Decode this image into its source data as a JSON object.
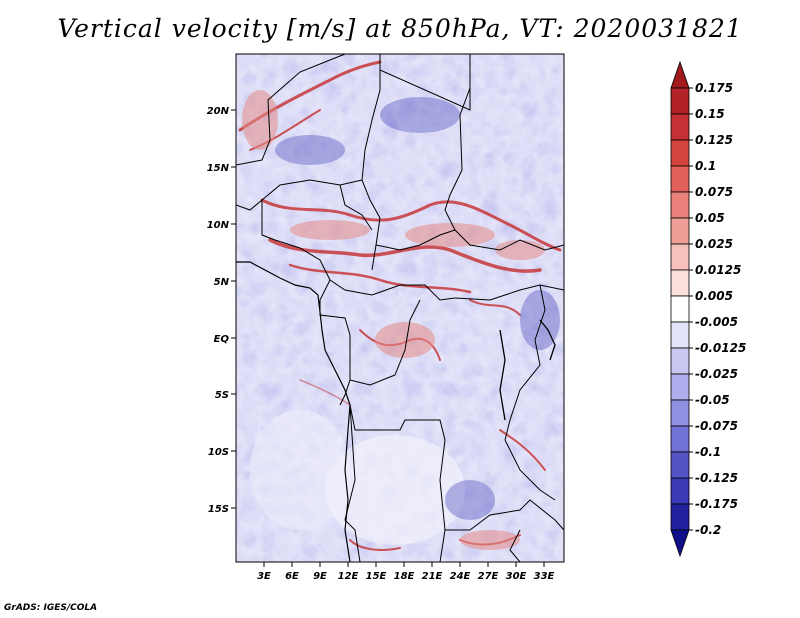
{
  "title": "Vertical velocity [m/s] at 850hPa, VT: 2020031821",
  "credit": "GrADS: IGES/COLA",
  "map": {
    "region": "Central Africa",
    "lat_labels": [
      "20N",
      "15N",
      "10N",
      "5N",
      "EQ",
      "5S",
      "10S",
      "15S"
    ],
    "lon_labels": [
      "3E",
      "6E",
      "9E",
      "12E",
      "15E",
      "18E",
      "21E",
      "24E",
      "27E",
      "30E",
      "33E"
    ]
  },
  "colorbar": {
    "labels": [
      "0.175",
      "0.15",
      "0.125",
      "0.1",
      "0.075",
      "0.05",
      "0.025",
      "0.0125",
      "0.005",
      "-0.005",
      "-0.0125",
      "-0.025",
      "-0.05",
      "-0.075",
      "-0.1",
      "-0.125",
      "-0.175",
      "-0.2"
    ],
    "colors": [
      "#a01a1e",
      "#b22226",
      "#c43034",
      "#d4443f",
      "#e0605a",
      "#e98079",
      "#f09e98",
      "#f6c0bb",
      "#fbe0dd",
      "#ffffff",
      "#e2e2f8",
      "#c8c8f2",
      "#aeaeec",
      "#9090e2",
      "#7272d6",
      "#5454c6",
      "#3a3ab4",
      "#22229e",
      "#10108a"
    ]
  }
}
